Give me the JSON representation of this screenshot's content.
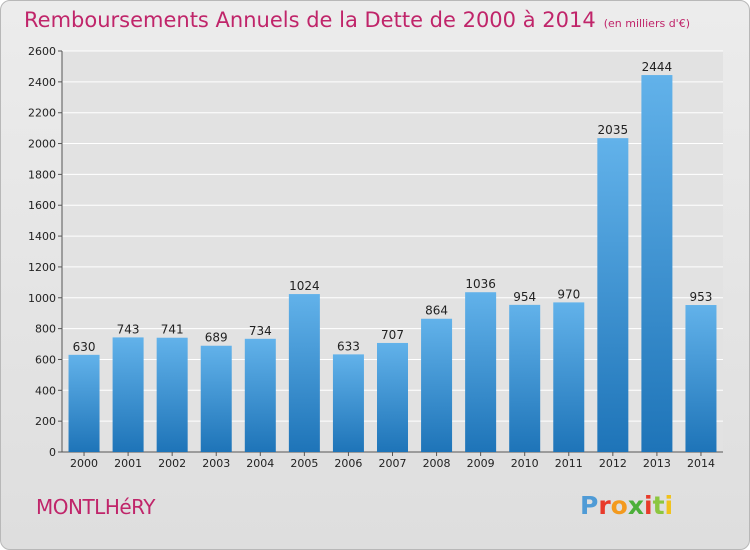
{
  "title": "Remboursements Annuels de la Dette de 2000 à 2014",
  "subtitle": "(en milliers d'€)",
  "commune": "MONTLHéRY",
  "logo": {
    "letters": [
      "P",
      "r",
      "o",
      "x",
      "i",
      "t",
      "i"
    ],
    "colors": [
      "#4f9bd6",
      "#e83a2a",
      "#f39a1e",
      "#4caf3a",
      "#e83a2a",
      "#8cc63f",
      "#f1c21b"
    ]
  },
  "colors": {
    "bar_top": "#62b2ea",
    "bar_bottom": "#1e74b8",
    "grid": "#ffffff",
    "accent": "#c0256a"
  },
  "chart_data": {
    "type": "bar",
    "categories": [
      "2000",
      "2001",
      "2002",
      "2003",
      "2004",
      "2005",
      "2006",
      "2007",
      "2008",
      "2009",
      "2010",
      "2011",
      "2012",
      "2013",
      "2014"
    ],
    "values": [
      630,
      743,
      741,
      689,
      734,
      1024,
      633,
      707,
      864,
      1036,
      954,
      970,
      2035,
      2444,
      953
    ],
    "title": "Remboursements Annuels de la Dette de 2000 à 2014",
    "subtitle": "(en milliers d'€)",
    "xlabel": "",
    "ylabel": "",
    "ylim": [
      0,
      2600
    ],
    "yticks": [
      0,
      200,
      400,
      600,
      800,
      1000,
      1200,
      1400,
      1600,
      1800,
      2000,
      2200,
      2400,
      2600
    ],
    "grid": true,
    "legend": "none"
  }
}
